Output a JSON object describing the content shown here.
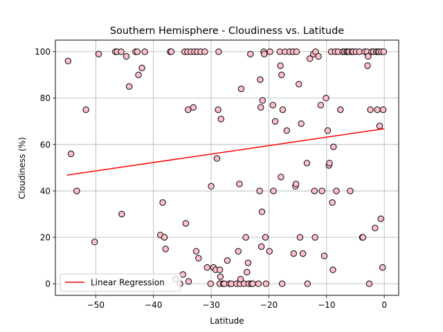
{
  "chart_data": {
    "type": "scatter",
    "title": "Southern Hemisphere - Cloudiness vs. Latitude",
    "xlabel": "Latitude",
    "ylabel": "Cloudiness (%)",
    "xlim": [
      -57,
      2.5
    ],
    "ylim": [
      -5,
      105
    ],
    "xticks": [
      -50,
      -40,
      -30,
      -20,
      -10,
      0
    ],
    "yticks": [
      0,
      20,
      40,
      60,
      80,
      100
    ],
    "grid": true,
    "legend_position": "lower-left",
    "colors": {
      "point_fill": "#ffc0cb",
      "point_edge": "#000000",
      "regression": "#ff0000",
      "grid": "#b0b0b0"
    },
    "series": [
      {
        "kind": "scatter",
        "points": [
          [
            -54.8,
            96
          ],
          [
            -54.3,
            56
          ],
          [
            -53.3,
            40
          ],
          [
            -51.7,
            75
          ],
          [
            -50.2,
            18
          ],
          [
            -49.5,
            99
          ],
          [
            -46.6,
            100
          ],
          [
            -46.3,
            100
          ],
          [
            -45.6,
            100
          ],
          [
            -45.5,
            30
          ],
          [
            -44.7,
            98
          ],
          [
            -44.2,
            85
          ],
          [
            -43.1,
            100
          ],
          [
            -42.8,
            100
          ],
          [
            -42.6,
            90
          ],
          [
            -42.0,
            93
          ],
          [
            -41.5,
            100
          ],
          [
            -38.8,
            21
          ],
          [
            -38.4,
            35
          ],
          [
            -38.1,
            20
          ],
          [
            -37.9,
            15
          ],
          [
            -37.1,
            100
          ],
          [
            -36.9,
            100
          ],
          [
            -36.2,
            2
          ],
          [
            -35.4,
            0
          ],
          [
            -34.9,
            4
          ],
          [
            -34.6,
            100
          ],
          [
            -34.4,
            26
          ],
          [
            -34.1,
            100
          ],
          [
            -34.0,
            75
          ],
          [
            -33.9,
            1
          ],
          [
            -33.5,
            100
          ],
          [
            -33.1,
            76
          ],
          [
            -32.9,
            100
          ],
          [
            -32.6,
            14
          ],
          [
            -32.4,
            100
          ],
          [
            -32.2,
            11
          ],
          [
            -31.8,
            100
          ],
          [
            -31.1,
            100
          ],
          [
            -30.7,
            7
          ],
          [
            -30.1,
            0
          ],
          [
            -30.0,
            42
          ],
          [
            -29.6,
            7
          ],
          [
            -29.2,
            6
          ],
          [
            -29.0,
            54
          ],
          [
            -28.8,
            75
          ],
          [
            -28.7,
            100
          ],
          [
            -28.5,
            6
          ],
          [
            -28.5,
            0
          ],
          [
            -28.4,
            3
          ],
          [
            -28.3,
            71
          ],
          [
            -27.9,
            0
          ],
          [
            -27.7,
            0
          ],
          [
            -27.2,
            10
          ],
          [
            -26.8,
            0
          ],
          [
            -26.5,
            0
          ],
          [
            -25.6,
            0
          ],
          [
            -25.3,
            14
          ],
          [
            -25.1,
            43
          ],
          [
            -25.0,
            0
          ],
          [
            -24.9,
            2
          ],
          [
            -24.8,
            84
          ],
          [
            -24.3,
            0
          ],
          [
            -24.0,
            20
          ],
          [
            -23.8,
            5
          ],
          [
            -23.6,
            9
          ],
          [
            -23.5,
            0
          ],
          [
            -23.2,
            99
          ],
          [
            -23.0,
            0
          ],
          [
            -22.8,
            0
          ],
          [
            -21.8,
            0
          ],
          [
            -21.6,
            40
          ],
          [
            -21.5,
            88
          ],
          [
            -21.4,
            76
          ],
          [
            -21.3,
            16
          ],
          [
            -21.2,
            31
          ],
          [
            -21.1,
            79
          ],
          [
            -20.9,
            100
          ],
          [
            -20.8,
            99
          ],
          [
            -20.6,
            20
          ],
          [
            -20.5,
            0
          ],
          [
            -19.9,
            14
          ],
          [
            -19.8,
            100
          ],
          [
            -19.3,
            77
          ],
          [
            -19.2,
            40
          ],
          [
            -18.9,
            70
          ],
          [
            -18.1,
            100
          ],
          [
            -18.0,
            94
          ],
          [
            -17.9,
            46
          ],
          [
            -17.8,
            90
          ],
          [
            -17.7,
            0
          ],
          [
            -17.6,
            75
          ],
          [
            -17.2,
            100
          ],
          [
            -16.9,
            66
          ],
          [
            -16.4,
            100
          ],
          [
            -15.8,
            100
          ],
          [
            -15.7,
            13
          ],
          [
            -15.4,
            42
          ],
          [
            -15.3,
            43
          ],
          [
            -15.2,
            100
          ],
          [
            -14.8,
            86
          ],
          [
            -14.6,
            20
          ],
          [
            -14.4,
            69
          ],
          [
            -14.1,
            13
          ],
          [
            -13.4,
            52
          ],
          [
            -13.3,
            0
          ],
          [
            -12.9,
            97
          ],
          [
            -12.3,
            99
          ],
          [
            -12.1,
            40
          ],
          [
            -12.0,
            20
          ],
          [
            -11.9,
            100
          ],
          [
            -11.4,
            98
          ],
          [
            -11.0,
            77
          ],
          [
            -10.8,
            40
          ],
          [
            -10.4,
            12
          ],
          [
            -10.1,
            80
          ],
          [
            -9.8,
            66
          ],
          [
            -9.6,
            51
          ],
          [
            -9.5,
            52
          ],
          [
            -9.2,
            100
          ],
          [
            -9.0,
            35
          ],
          [
            -8.9,
            6
          ],
          [
            -8.8,
            59
          ],
          [
            -8.5,
            100
          ],
          [
            -8.3,
            40
          ],
          [
            -8.0,
            100
          ],
          [
            -7.6,
            75
          ],
          [
            -7.2,
            100
          ],
          [
            -6.9,
            100
          ],
          [
            -6.5,
            100
          ],
          [
            -6.3,
            100
          ],
          [
            -6.1,
            100
          ],
          [
            -5.9,
            40
          ],
          [
            -5.6,
            100
          ],
          [
            -5.4,
            100
          ],
          [
            -4.9,
            100
          ],
          [
            -4.3,
            100
          ],
          [
            -3.8,
            20
          ],
          [
            -3.7,
            20
          ],
          [
            -3.4,
            100
          ],
          [
            -3.0,
            100
          ],
          [
            -2.9,
            94
          ],
          [
            -2.8,
            98
          ],
          [
            -2.6,
            0
          ],
          [
            -2.4,
            75
          ],
          [
            -2.2,
            100
          ],
          [
            -1.9,
            100
          ],
          [
            -1.6,
            24
          ],
          [
            -1.4,
            100
          ],
          [
            -1.2,
            75
          ],
          [
            -1.1,
            100
          ],
          [
            -0.9,
            100
          ],
          [
            -0.8,
            68
          ],
          [
            -0.6,
            28
          ],
          [
            -0.5,
            100
          ],
          [
            -0.3,
            7
          ],
          [
            -0.2,
            75
          ],
          [
            -0.1,
            100
          ]
        ]
      },
      {
        "kind": "line",
        "name": "Linear Regression",
        "points": [
          [
            -55,
            46.8
          ],
          [
            0,
            66.8
          ]
        ]
      }
    ]
  }
}
